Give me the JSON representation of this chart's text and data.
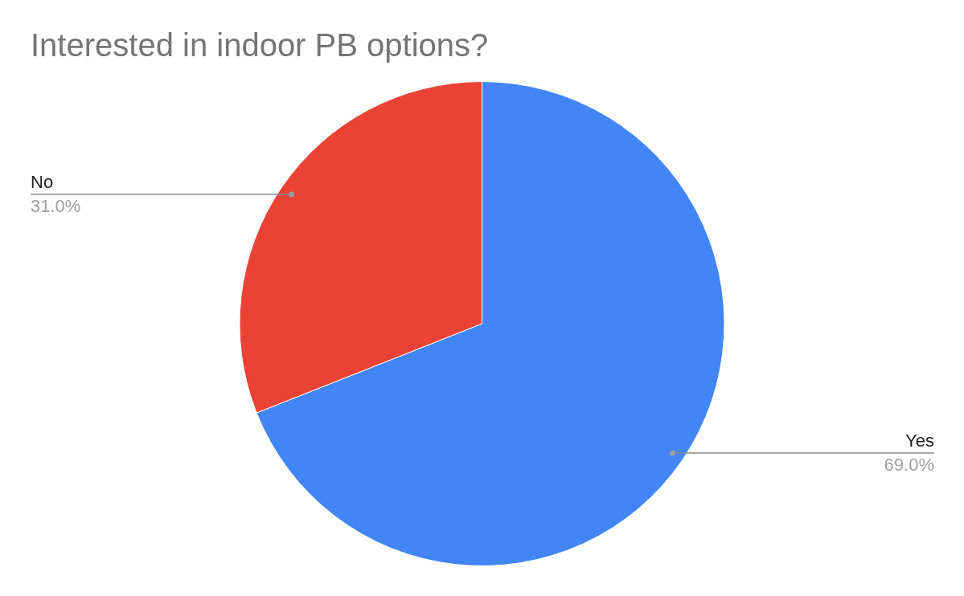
{
  "chart_data": {
    "type": "pie",
    "title": "Interested in indoor PB options?",
    "categories": [
      "Yes",
      "No"
    ],
    "values": [
      69,
      31
    ],
    "colors": [
      "#4285f4",
      "#ea4335"
    ],
    "value_labels": [
      "69.0%",
      "31.0%"
    ]
  }
}
